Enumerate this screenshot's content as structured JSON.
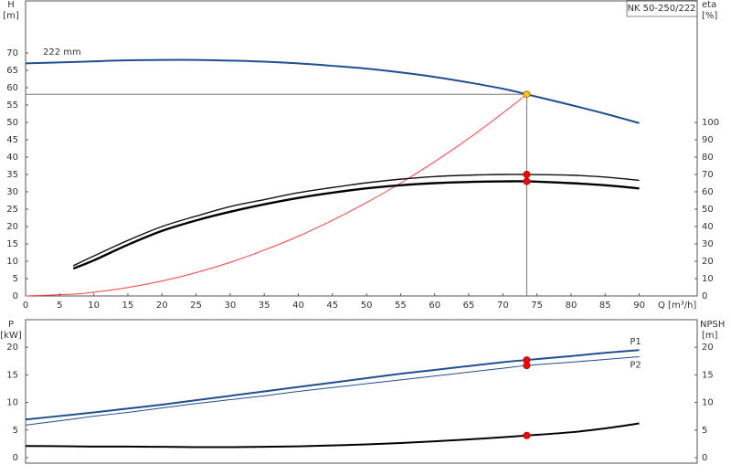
{
  "chart_data": [
    {
      "type": "line",
      "title": "NK 50-250/222",
      "curve_label": "222 mm",
      "ylabel": "H",
      "yunit": "[m]",
      "y2label": "eta",
      "y2unit": "[%]",
      "xlabel": "Q [m³/h]",
      "x": [
        0,
        7,
        10,
        15,
        20,
        25,
        30,
        35,
        40,
        45,
        50,
        55,
        60,
        65,
        70,
        73.5,
        80,
        85,
        90
      ],
      "xlim": [
        0,
        98.5
      ],
      "xticks": [
        0,
        5,
        10,
        15,
        20,
        25,
        30,
        35,
        40,
        45,
        50,
        55,
        60,
        65,
        70,
        75,
        80,
        85,
        90
      ],
      "ylim": [
        0,
        85
      ],
      "yticks": [
        0,
        5,
        10,
        15,
        20,
        25,
        30,
        35,
        40,
        45,
        50,
        55,
        60,
        65,
        70
      ],
      "y2lim": [
        0,
        170
      ],
      "y2ticks": [
        0,
        10,
        20,
        30,
        40,
        50,
        60,
        70,
        80,
        90,
        100
      ],
      "duty_point": {
        "x": 73.5,
        "y": 58.1
      },
      "series": [
        {
          "color": "#1f4f8f",
          "width": 2,
          "point_color": "#ffcc00",
          "values": [
            67,
            67.4,
            67.6,
            67.9,
            68.0,
            68.0,
            67.8,
            67.5,
            67.0,
            66.3,
            65.5,
            64.4,
            63.1,
            61.5,
            59.7,
            58.1,
            55.0,
            52.5,
            49.8
          ]
        },
        {
          "color": "#ff3b3b",
          "width": 1,
          "values": [
            0,
            0.53,
            1.08,
            2.42,
            4.3,
            6.72,
            9.68,
            13.2,
            17.2,
            21.8,
            26.9,
            32.5,
            38.7,
            45.4,
            52.7,
            58.1,
            null,
            null,
            null
          ]
        },
        {
          "color": "#111111",
          "width": 1.4,
          "axis": "y2",
          "point_color": "#ff0000",
          "values": [
            null,
            17.4,
            23,
            32,
            40,
            46,
            51.5,
            55.5,
            59.5,
            62.5,
            65.2,
            67.3,
            68.8,
            69.6,
            70.0,
            70.0,
            69.6,
            68.5,
            66.6
          ]
        },
        {
          "color": "#000000",
          "width": 2.4,
          "axis": "y2",
          "point_color": "#ff0000",
          "values": [
            null,
            15.8,
            20.5,
            29.5,
            37.5,
            43.5,
            48.5,
            52.8,
            56.5,
            59.5,
            62,
            63.8,
            65,
            65.7,
            66,
            66,
            65,
            63.8,
            62
          ]
        }
      ]
    },
    {
      "type": "line",
      "ylabel": "P",
      "yunit": "[kW]",
      "y2label": "NPSH",
      "y2unit": "[m]",
      "x": [
        0,
        7,
        10,
        15,
        20,
        25,
        30,
        35,
        40,
        45,
        50,
        55,
        60,
        65,
        70,
        73.5,
        80,
        85,
        90
      ],
      "xlim": [
        0,
        98.5
      ],
      "ylim": [
        -1,
        25
      ],
      "yticks": [
        0,
        5,
        10,
        15,
        20
      ],
      "y2lim": [
        -1,
        25
      ],
      "y2ticks": [
        0,
        5,
        10,
        15,
        20
      ],
      "series": [
        {
          "name": "P1",
          "color": "#1f4f8f",
          "width": 2,
          "point_color": "#ff0000",
          "values": [
            6.9,
            7.8,
            8.2,
            8.9,
            9.6,
            10.4,
            11.2,
            12.0,
            12.8,
            13.6,
            14.4,
            15.2,
            15.9,
            16.6,
            17.3,
            17.7,
            18.4,
            19.0,
            19.5
          ]
        },
        {
          "name": "P2",
          "color": "#1f4f8f",
          "width": 1,
          "point_color": "#ff0000",
          "values": [
            5.9,
            7.0,
            7.5,
            8.2,
            9.0,
            9.8,
            10.5,
            11.2,
            12.0,
            12.7,
            13.4,
            14.1,
            14.8,
            15.5,
            16.2,
            16.7,
            17.3,
            17.8,
            18.3
          ]
        },
        {
          "color": "#000000",
          "width": 2,
          "axis": "y2",
          "point_color": "#ff0000",
          "values": [
            2.1,
            2.05,
            2.0,
            2.0,
            1.95,
            1.9,
            1.9,
            1.95,
            2.05,
            2.2,
            2.4,
            2.65,
            2.95,
            3.3,
            3.7,
            4.0,
            4.6,
            5.3,
            6.2
          ]
        }
      ]
    }
  ]
}
